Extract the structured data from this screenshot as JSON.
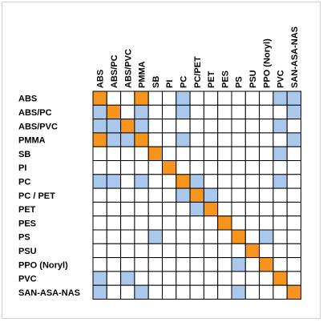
{
  "chart_data": {
    "type": "heatmap",
    "title": "",
    "xlabel": "",
    "ylabel": "",
    "colors": {
      "diagonal": "#f7941d",
      "compatible": "#a9c8ec",
      "none": "#ffffff",
      "grid": "#000000"
    },
    "legend": "none",
    "columns": [
      "ABS",
      "ABS/PC",
      "ABS/PVC",
      "PMMA",
      "SB",
      "PI",
      "PC",
      "PC/PET",
      "PET",
      "PES",
      "PS",
      "PSU",
      "PPO (Noryl)",
      "PVC",
      "SAN-ASA-NAS"
    ],
    "rows": [
      "ABS",
      "ABS/PC",
      "ABS/PVC",
      "PMMA",
      "SB",
      "PI",
      "PC",
      "PC / PET",
      "PET",
      "PES",
      "PS",
      "PSU",
      "PPO (Noryl)",
      "PVC",
      "SAN-ASA-NAS"
    ],
    "values": [
      [
        2,
        0,
        0,
        2,
        0,
        0,
        1,
        0,
        0,
        0,
        0,
        0,
        0,
        1,
        1
      ],
      [
        1,
        2,
        0,
        1,
        0,
        0,
        1,
        0,
        0,
        0,
        0,
        0,
        0,
        0,
        1
      ],
      [
        1,
        1,
        2,
        1,
        0,
        0,
        0,
        0,
        0,
        0,
        0,
        0,
        0,
        1,
        0
      ],
      [
        2,
        1,
        1,
        2,
        0,
        0,
        1,
        0,
        0,
        0,
        0,
        0,
        0,
        0,
        1
      ],
      [
        0,
        0,
        0,
        0,
        2,
        0,
        0,
        0,
        0,
        0,
        0,
        0,
        0,
        1,
        0
      ],
      [
        0,
        0,
        0,
        0,
        0,
        2,
        0,
        0,
        0,
        0,
        0,
        0,
        0,
        0,
        0
      ],
      [
        1,
        1,
        0,
        1,
        0,
        0,
        2,
        1,
        0,
        0,
        0,
        0,
        0,
        1,
        0
      ],
      [
        0,
        0,
        0,
        0,
        0,
        0,
        1,
        2,
        1,
        0,
        0,
        0,
        0,
        0,
        0
      ],
      [
        0,
        0,
        0,
        0,
        0,
        0,
        0,
        1,
        2,
        0,
        0,
        0,
        0,
        0,
        0
      ],
      [
        0,
        0,
        0,
        0,
        0,
        0,
        0,
        0,
        0,
        2,
        0,
        0,
        0,
        0,
        0
      ],
      [
        0,
        0,
        0,
        0,
        1,
        0,
        0,
        0,
        0,
        0,
        2,
        0,
        1,
        0,
        0
      ],
      [
        0,
        0,
        0,
        0,
        0,
        0,
        0,
        0,
        0,
        0,
        0,
        2,
        0,
        0,
        0
      ],
      [
        0,
        0,
        0,
        0,
        0,
        0,
        0,
        0,
        0,
        0,
        1,
        0,
        2,
        0,
        0
      ],
      [
        1,
        0,
        1,
        0,
        0,
        0,
        0,
        0,
        0,
        0,
        0,
        0,
        0,
        2,
        0
      ],
      [
        1,
        0,
        0,
        1,
        0,
        0,
        0,
        0,
        0,
        0,
        1,
        0,
        0,
        0,
        2
      ]
    ]
  }
}
